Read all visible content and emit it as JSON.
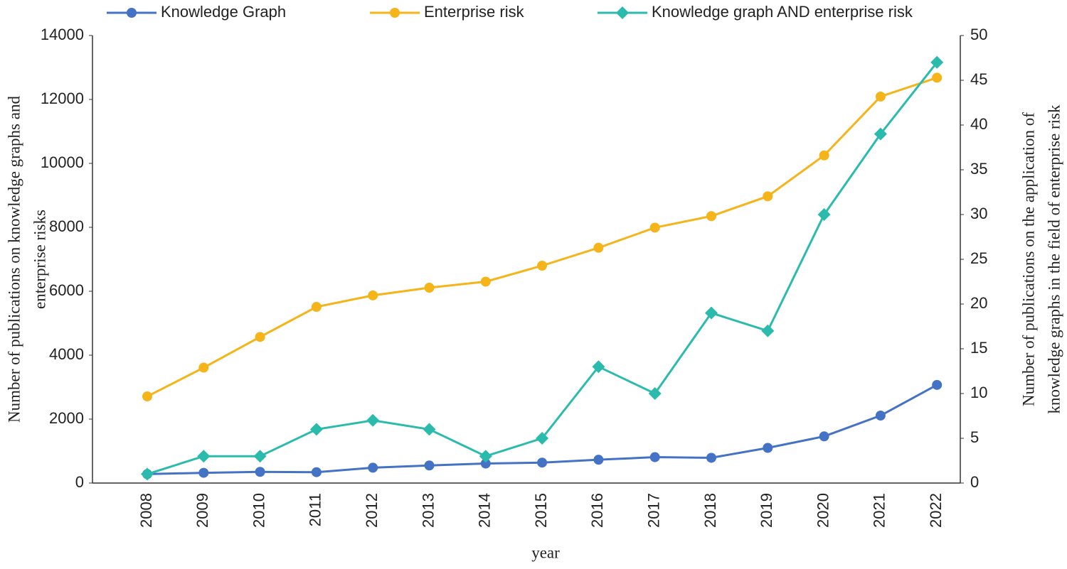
{
  "chart_data": {
    "type": "line",
    "categories": [
      "2008",
      "2009",
      "2010",
      "2011",
      "2012",
      "2013",
      "2014",
      "2015",
      "2016",
      "2017",
      "2018",
      "2019",
      "2020",
      "2021",
      "2022"
    ],
    "series": [
      {
        "name": "Knowledge Graph",
        "color": "#4472c4",
        "marker": "circle",
        "values": [
          280,
          320,
          350,
          340,
          480,
          550,
          610,
          640,
          730,
          810,
          790,
          1100,
          1460,
          2110,
          3070
        ]
      },
      {
        "name": "Enterprise risk",
        "color": "#f4b41a",
        "marker": "circle",
        "values": [
          2710,
          3610,
          4570,
          5510,
          5870,
          6110,
          6300,
          6800,
          7360,
          7990,
          8350,
          8970,
          10250,
          12090,
          12680
        ]
      },
      {
        "name": "Knowledge graph AND enterprise risk",
        "color": "#2bbbad",
        "marker": "diamond",
        "axis": "y2",
        "values": [
          1,
          3,
          3,
          6,
          7,
          6,
          3,
          5,
          13,
          10,
          19,
          17,
          30,
          39,
          47
        ]
      }
    ],
    "x_label": "year",
    "y_label": [
      "Number of publications on knowledge graphs and",
      "enterprise risks"
    ],
    "y2_label": [
      "Number of publications on the application of",
      "knowledge graphs in the field of enterprise risk"
    ],
    "ylim": [
      0,
      14000
    ],
    "yticks": [
      0,
      2000,
      4000,
      6000,
      8000,
      10000,
      12000,
      14000
    ],
    "y2lim": [
      0,
      50
    ],
    "y2ticks": [
      0,
      5,
      10,
      15,
      20,
      25,
      30,
      35,
      40,
      45,
      50
    ],
    "legend": "top",
    "grid": false
  }
}
